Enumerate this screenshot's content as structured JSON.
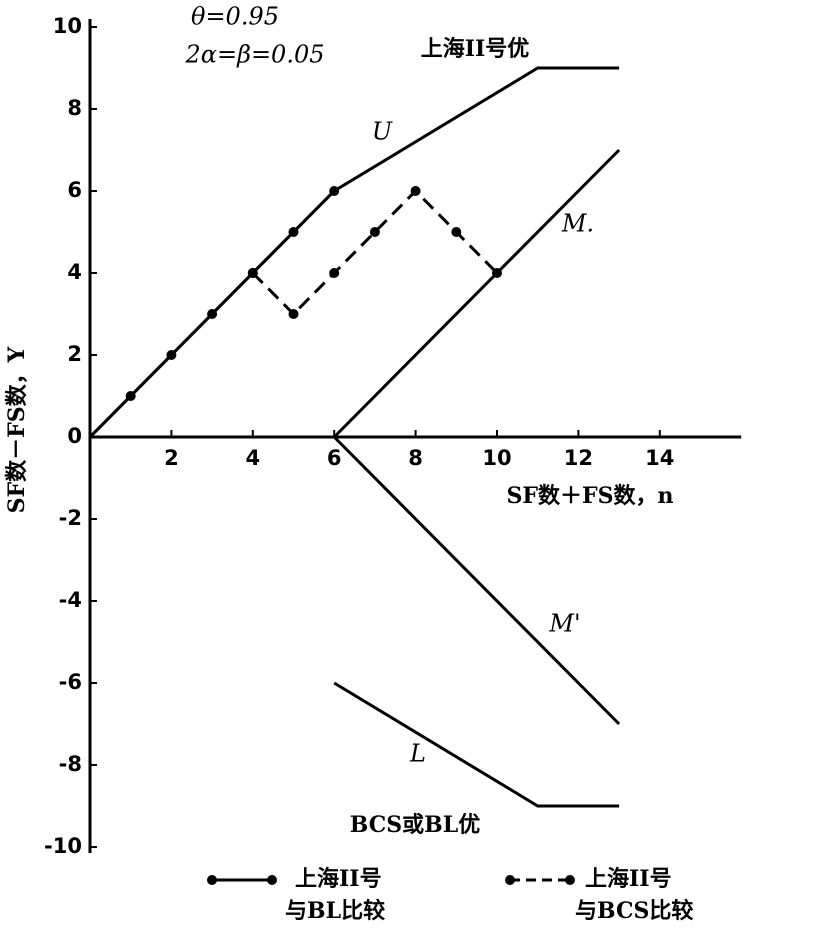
{
  "chart_data": {
    "type": "line",
    "ylabel": "SF数－FS数，Y",
    "xlabel": "SF数＋FS数，n",
    "xlim": [
      0,
      16
    ],
    "ylim": [
      -10,
      10
    ],
    "xticks": [
      2,
      4,
      6,
      8,
      10,
      12,
      14
    ],
    "yticks": [
      -10,
      -8,
      -6,
      -4,
      -2,
      0,
      2,
      4,
      6,
      8,
      10
    ],
    "annotations": [
      "θ=0.95",
      "2α=β=0.05",
      "上海II号优",
      "BCS或BL优"
    ],
    "boundaries": [
      {
        "name": "U",
        "x": [
          0,
          6,
          11,
          13
        ],
        "values": [
          0,
          6,
          9,
          9
        ]
      },
      {
        "name": "M.",
        "x": [
          6,
          13
        ],
        "values": [
          0,
          7
        ]
      },
      {
        "name": "M'",
        "x": [
          6,
          13
        ],
        "values": [
          0,
          -7
        ]
      },
      {
        "name": "L",
        "x": [
          6,
          11,
          13
        ],
        "values": [
          -6,
          -9,
          -9
        ]
      }
    ],
    "series": [
      {
        "name": "上海II号\n与BL比较",
        "color": "#000000",
        "dash": "solid",
        "x": [
          0,
          1,
          2,
          3,
          4,
          5,
          6
        ],
        "values": [
          0,
          1,
          2,
          3,
          4,
          5,
          6
        ]
      },
      {
        "name": "上海II号\n与BCS比较",
        "color": "#000000",
        "dash": "dashed",
        "x": [
          4,
          5,
          6,
          7,
          8,
          9,
          10
        ],
        "values": [
          4,
          3,
          4,
          5,
          6,
          5,
          4
        ]
      }
    ]
  }
}
